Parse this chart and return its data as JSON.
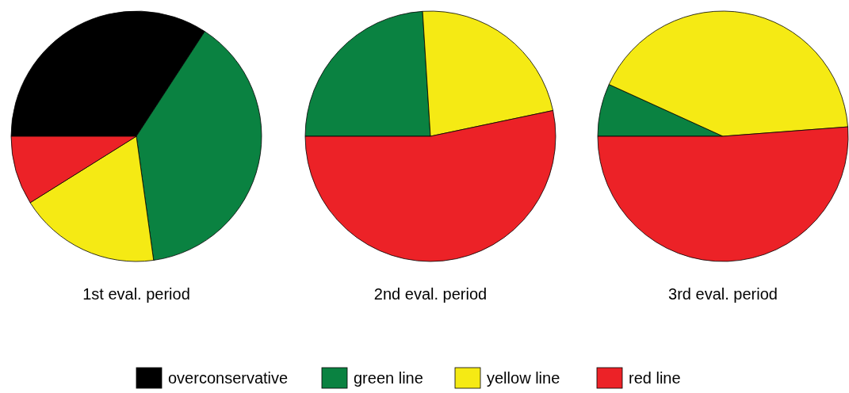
{
  "chart_data": [
    {
      "type": "pie",
      "title": "1st eval. period",
      "categories": [
        "overconservative",
        "green line",
        "yellow line",
        "red line"
      ],
      "values": [
        34.2,
        38.6,
        18.3,
        8.9
      ],
      "colors": [
        "#000000",
        "#0a8241",
        "#f5ea14",
        "#ec2227"
      ],
      "legend": "bottom"
    },
    {
      "type": "pie",
      "title": "2nd eval. period",
      "categories": [
        null,
        null,
        null
      ],
      "values": [
        24,
        22.7,
        53.3
      ],
      "colors": [
        "#0a8241",
        "#f5ea14",
        "#ec2227"
      ]
    },
    {
      "type": "pie",
      "title": "3rd eval. period",
      "categories": [
        null,
        null,
        null
      ],
      "values": [
        6.8,
        42,
        51.2
      ],
      "colors": [
        "#0a8241",
        "#f5ea14",
        "#ec2227"
      ]
    }
  ]
}
